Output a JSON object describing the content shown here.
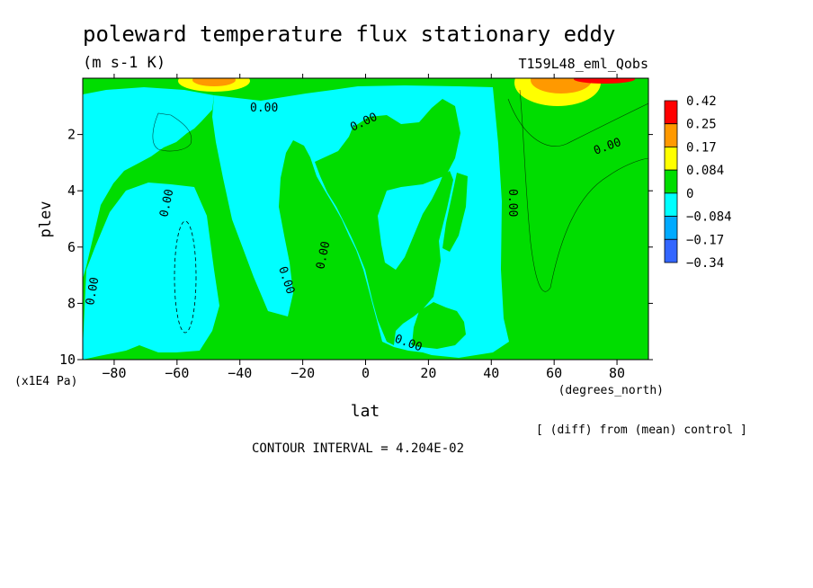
{
  "chart_data": {
    "type": "heatmap",
    "title": "poleward temperature flux stationary eddy",
    "units": "(m s-1 K)",
    "experiment": "T159L48_eml_Qobs",
    "xlabel": "lat",
    "x_units": "(degrees_north)",
    "ylabel": "plev",
    "y_units": "(x1E4 Pa)",
    "xlim": [
      -90,
      90
    ],
    "ylim": [
      10,
      0
    ],
    "x_ticks": [
      -80,
      -60,
      -40,
      -20,
      0,
      20,
      40,
      60,
      80
    ],
    "x_tick_labels": [
      "−80",
      "−60",
      "−40",
      "−20",
      "0",
      "20",
      "40",
      "60",
      "80"
    ],
    "y_ticks": [
      2,
      4,
      6,
      8,
      10
    ],
    "y_tick_labels": [
      "2",
      "4",
      "6",
      "8",
      "10"
    ],
    "contour_label": "0.00",
    "colorbar": {
      "labels": [
        "0.42",
        "0.25",
        "0.17",
        "0.084",
        "0",
        "−0.084",
        "−0.17",
        "−0.34"
      ],
      "colors": [
        "#ff0000",
        "#ff9900",
        "#ffff00",
        "#00dd00",
        "#00ffff",
        "#00aaff",
        "#3366ff"
      ]
    },
    "diff_note": "[ (diff) from (mean) control ]",
    "contour_interval": "CONTOUR INTERVAL = 4.204E-02"
  },
  "colors": {
    "green": "#00dd00",
    "cyan": "#00ffff",
    "yellow": "#ffff00",
    "orange": "#ff9900",
    "red": "#ff0000"
  }
}
